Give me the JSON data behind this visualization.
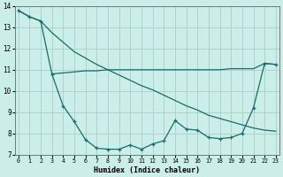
{
  "xlabel": "Humidex (Indice chaleur)",
  "background_color": "#cceee8",
  "grid_color": "#aad4ce",
  "line_color": "#1a6b6b",
  "x_values": [
    0,
    1,
    2,
    3,
    4,
    5,
    6,
    7,
    8,
    9,
    10,
    11,
    12,
    13,
    14,
    15,
    16,
    17,
    18,
    19,
    20,
    21,
    22,
    23
  ],
  "line_diagonal": [
    13.8,
    13.5,
    13.3,
    12.75,
    12.3,
    11.85,
    11.55,
    11.25,
    11.0,
    10.75,
    10.5,
    10.25,
    10.05,
    9.8,
    9.55,
    9.3,
    9.1,
    8.85,
    8.7,
    8.55,
    8.4,
    8.25,
    8.15,
    8.1
  ],
  "line_flat": [
    null,
    null,
    null,
    10.8,
    10.85,
    10.9,
    10.95,
    10.95,
    11.0,
    11.0,
    11.0,
    11.0,
    11.0,
    11.0,
    11.0,
    11.0,
    11.0,
    11.0,
    11.0,
    11.05,
    11.05,
    11.05,
    11.3,
    11.25
  ],
  "line_u": [
    13.8,
    13.5,
    13.3,
    10.8,
    9.3,
    8.55,
    7.7,
    7.3,
    7.25,
    7.25,
    7.45,
    7.25,
    7.5,
    7.65,
    8.6,
    8.2,
    8.15,
    7.8,
    7.75,
    7.8,
    8.0,
    9.2,
    11.3,
    11.25
  ],
  "ylim": [
    7,
    14
  ],
  "yticks": [
    7,
    8,
    9,
    10,
    11,
    12,
    13,
    14
  ],
  "xticks": [
    0,
    1,
    2,
    3,
    4,
    5,
    6,
    7,
    8,
    9,
    10,
    11,
    12,
    13,
    14,
    15,
    16,
    17,
    18,
    19,
    20,
    21,
    22,
    23
  ],
  "xlim": [
    -0.3,
    23.3
  ]
}
